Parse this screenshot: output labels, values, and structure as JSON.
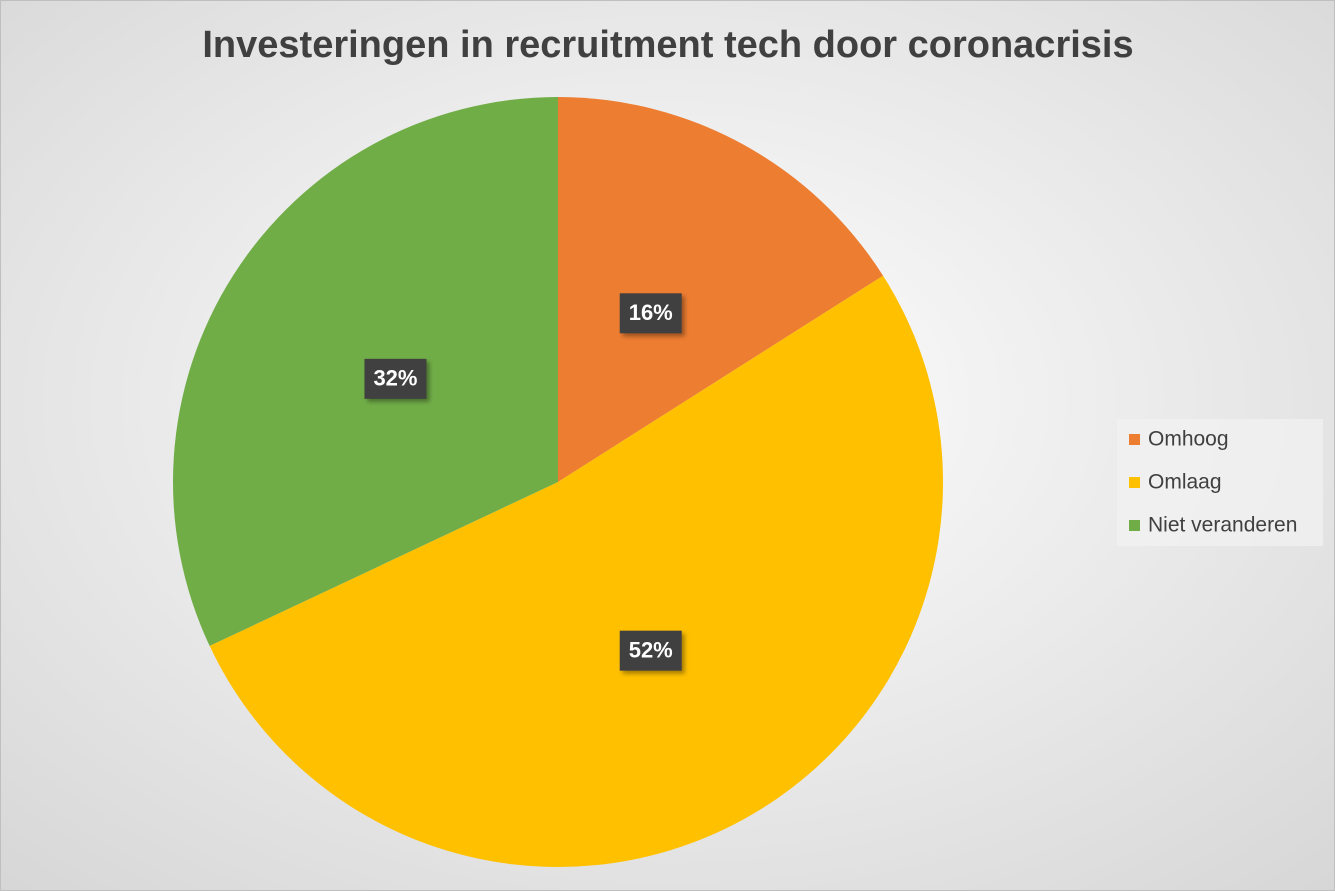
{
  "chart_data": {
    "type": "pie",
    "title": "Investeringen in recruitment tech door coronacrisis",
    "categories": [
      "Omhoog",
      "Omlaag",
      "Niet veranderen"
    ],
    "values": [
      16,
      52,
      32
    ],
    "value_labels": [
      "16%",
      "52%",
      "32%"
    ],
    "colors": [
      "#ED7D31",
      "#FFC000",
      "#70AD47"
    ],
    "legend": "right"
  }
}
